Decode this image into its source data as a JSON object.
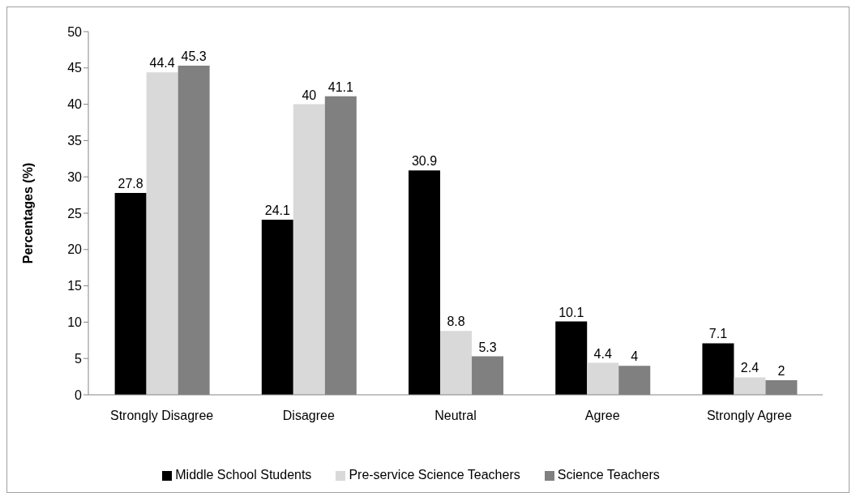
{
  "chart_data": {
    "type": "bar",
    "ylabel": "Percentages (%)",
    "categories": [
      "Strongly Disagree",
      "Disagree",
      "Neutral",
      "Agree",
      "Strongly Agree"
    ],
    "series": [
      {
        "name": "Middle School Students",
        "color": "#000000",
        "values": [
          27.8,
          24.1,
          30.9,
          10.1,
          7.1
        ]
      },
      {
        "name": "Pre-service Science Teachers",
        "color": "#d9d9d9",
        "values": [
          44.4,
          40,
          8.8,
          4.4,
          2.4
        ]
      },
      {
        "name": "Science Teachers",
        "color": "#808080",
        "values": [
          45.3,
          41.1,
          5.3,
          4,
          2
        ]
      }
    ],
    "ylim": [
      0,
      50
    ],
    "yticks": [
      0,
      5,
      10,
      15,
      20,
      25,
      30,
      35,
      40,
      45,
      50
    ],
    "grid": false,
    "legend": "bottom",
    "data_labels": true
  }
}
